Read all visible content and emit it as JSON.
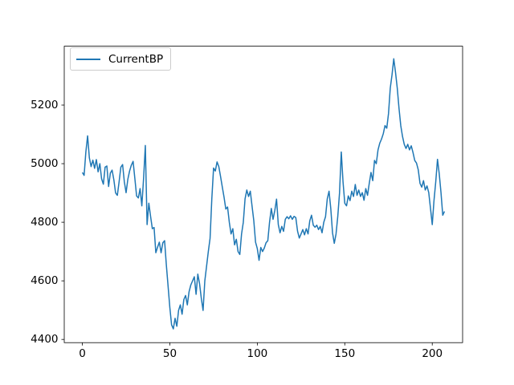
{
  "chart_data": {
    "type": "line",
    "title": "",
    "xlabel": "",
    "ylabel": "",
    "grid": false,
    "legend_position": "upper-left",
    "x_start": 0,
    "x_step": 1,
    "xlim": [
      -10.35,
      217.35
    ],
    "ylim": [
      4389,
      5401
    ],
    "x_ticks": [
      0,
      50,
      100,
      150,
      200
    ],
    "y_ticks": [
      4400,
      4600,
      4800,
      5000,
      5200
    ],
    "line_color": "#1f77b4",
    "axis_color": "#000000",
    "legend_border_color": "#cccccc",
    "series": [
      {
        "name": "CurrentBP",
        "values": [
          4970,
          4960,
          5040,
          5095,
          5020,
          4990,
          5012,
          4984,
          5014,
          4972,
          5000,
          4948,
          4930,
          4988,
          4992,
          4922,
          4968,
          4978,
          4945,
          4900,
          4892,
          4938,
          4988,
          4997,
          4938,
          4901,
          4947,
          4975,
          4995,
          5008,
          4950,
          4890,
          4883,
          4915,
          4856,
          4950,
          5062,
          4792,
          4865,
          4820,
          4778,
          4782,
          4696,
          4715,
          4732,
          4696,
          4730,
          4737,
          4655,
          4582,
          4509,
          4450,
          4436,
          4472,
          4445,
          4499,
          4518,
          4486,
          4536,
          4550,
          4518,
          4563,
          4586,
          4600,
          4614,
          4554,
          4623,
          4590,
          4540,
          4499,
          4600,
          4650,
          4700,
          4745,
          4880,
          4985,
          4975,
          5006,
          4990,
          4956,
          4920,
          4885,
          4845,
          4852,
          4800,
          4760,
          4778,
          4723,
          4742,
          4700,
          4690,
          4760,
          4800,
          4880,
          4910,
          4888,
          4906,
          4855,
          4805,
          4732,
          4710,
          4670,
          4714,
          4700,
          4712,
          4730,
          4737,
          4800,
          4847,
          4810,
          4840,
          4879,
          4792,
          4764,
          4786,
          4769,
          4810,
          4819,
          4812,
          4822,
          4810,
          4820,
          4816,
          4770,
          4746,
          4760,
          4775,
          4757,
          4778,
          4760,
          4805,
          4824,
          4790,
          4783,
          4790,
          4775,
          4786,
          4764,
          4800,
          4819,
          4880,
          4906,
          4847,
          4764,
          4728,
          4760,
          4820,
          4900,
          5040,
          4938,
          4865,
          4856,
          4890,
          4874,
          4906,
          4888,
          4929,
          4892,
          4910,
          4888,
          4901,
          4875,
          4915,
          4892,
          4933,
          4970,
          4942,
          5011,
          5000,
          5047,
          5070,
          5084,
          5102,
          5130,
          5121,
          5171,
          5258,
          5303,
          5358,
          5312,
          5258,
          5189,
          5130,
          5093,
          5066,
          5052,
          5066,
          5047,
          5061,
          5038,
          5011,
          5002,
          4979,
          4933,
          4920,
          4942,
          4910,
          4924,
          4901,
          4847,
          4792,
          4874,
          4938,
          5015,
          4965,
          4901,
          4824,
          4837
        ]
      }
    ]
  }
}
